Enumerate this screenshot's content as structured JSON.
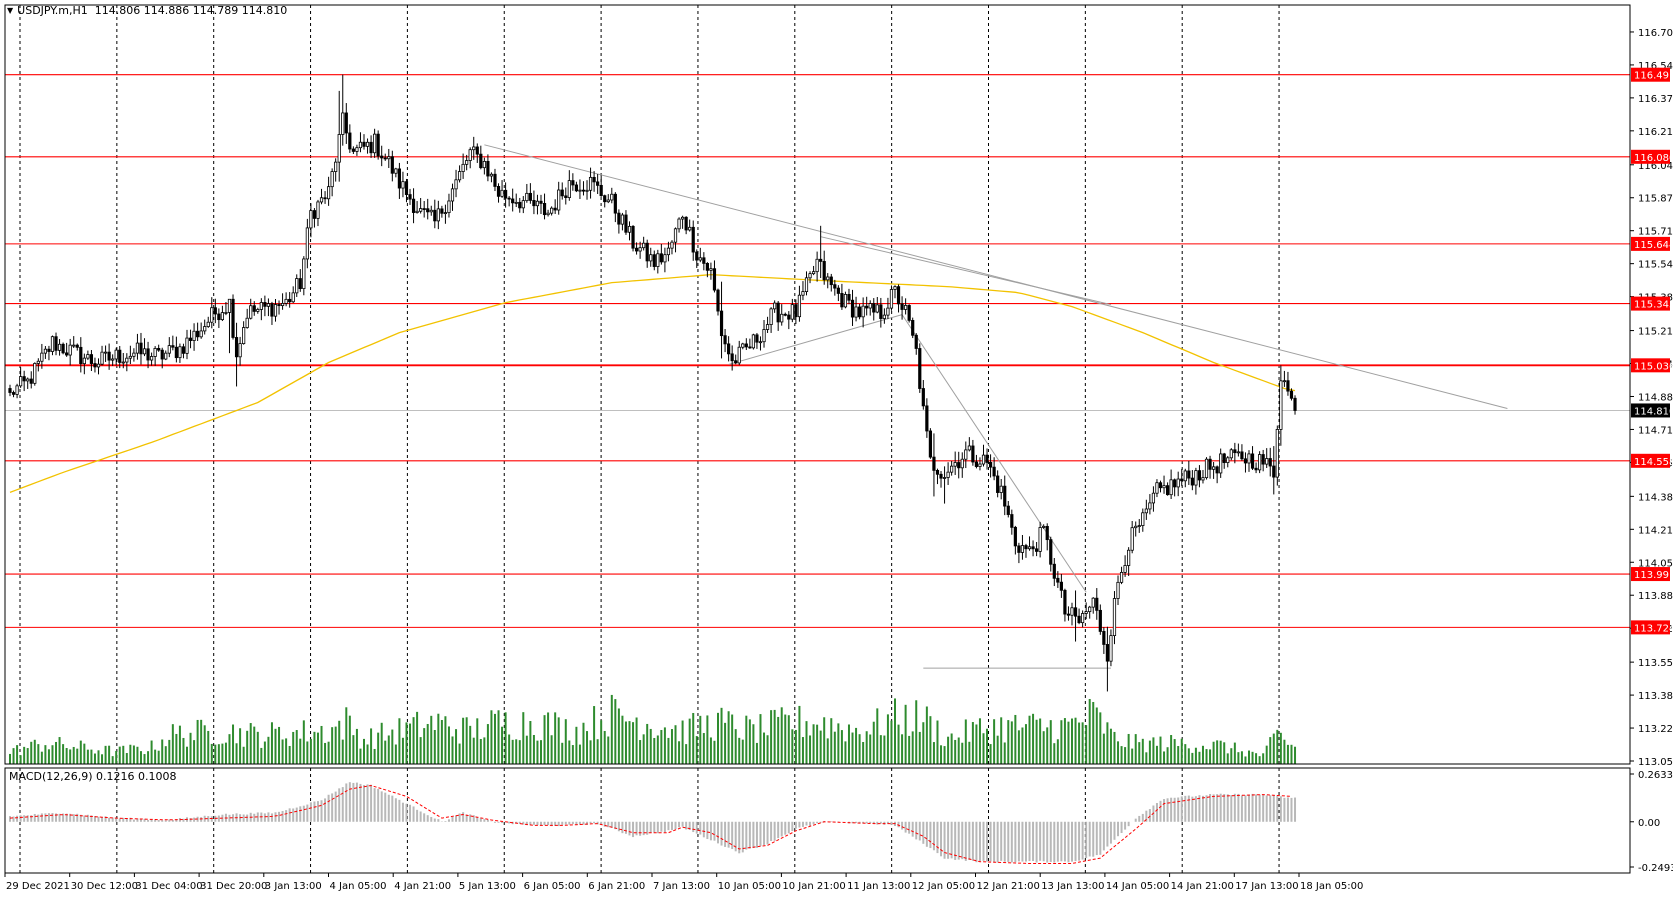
{
  "header": {
    "symbol": "USDJPY.m,H1",
    "ohlc": "114.806 114.886 114.789 114.810"
  },
  "macd_header": {
    "label": "MACD(12,26,9)",
    "values": "0.1216 0.1008"
  },
  "colors": {
    "background": "#ffffff",
    "axis": "#000000",
    "grid": "#000000",
    "bull_candle_fill": "#ffffff",
    "bear_candle_fill": "#000000",
    "candle_outline": "#000000",
    "volume": "#2e8b2e",
    "ma": "#f2c200",
    "level_line": "#ff0000",
    "trendline": "#a0a0a0",
    "current_price": "#bfbfbf",
    "macd_hist": "#b8b8b8",
    "macd_signal": "#ff0000",
    "tag_text": "#ffffff",
    "current_tag_bg": "#000000"
  },
  "chart_data": [
    {
      "type": "candlestick",
      "symbol": "USDJPY.m",
      "timeframe": "H1",
      "x_tick_labels": [
        "29 Dec 2021",
        "30 Dec 12:00",
        "31 Dec 04:00",
        "31 Dec 20:00",
        "3 Jan 13:00",
        "4 Jan 05:00",
        "4 Jan 21:00",
        "5 Jan 13:00",
        "6 Jan 05:00",
        "6 Jan 21:00",
        "7 Jan 13:00",
        "10 Jan 05:00",
        "10 Jan 21:00",
        "11 Jan 13:00",
        "12 Jan 05:00",
        "12 Jan 21:00",
        "13 Jan 13:00",
        "14 Jan 05:00",
        "14 Jan 21:00",
        "17 Jan 13:00",
        "18 Jan 05:00"
      ],
      "y_tick_labels": [
        "116.705",
        "116.540",
        "116.375",
        "116.210",
        "116.040",
        "115.875",
        "115.710",
        "115.545",
        "115.380",
        "115.210",
        "115.045",
        "114.880",
        "114.715",
        "114.550",
        "114.380",
        "114.215",
        "114.050",
        "113.885",
        "113.720",
        "113.550",
        "113.385",
        "113.220",
        "113.055"
      ],
      "ylim": [
        113.04,
        116.84
      ],
      "grid": "vertical dashed",
      "current_price": 114.81,
      "horizontal_levels": [
        116.491,
        116.08,
        115.644,
        115.345,
        115.036,
        114.558,
        113.991,
        113.724
      ],
      "moving_average": {
        "anchors": [
          [
            0,
            114.4
          ],
          [
            15,
            114.5
          ],
          [
            40,
            114.65
          ],
          [
            70,
            114.85
          ],
          [
            90,
            115.05
          ],
          [
            110,
            115.2
          ],
          [
            140,
            115.35
          ],
          [
            170,
            115.45
          ],
          [
            198,
            115.49
          ],
          [
            230,
            115.46
          ],
          [
            265,
            115.43
          ],
          [
            285,
            115.4
          ],
          [
            300,
            115.33
          ],
          [
            320,
            115.2
          ],
          [
            340,
            115.05
          ],
          [
            360,
            114.92
          ],
          [
            380,
            114.85
          ],
          [
            402,
            114.81
          ]
        ]
      },
      "trendlines": [
        {
          "from": [
            134,
            116.14
          ],
          "to": [
            423,
            114.82
          ]
        },
        {
          "from": [
            229,
            115.68
          ],
          "to": [
            311,
            115.34
          ]
        },
        {
          "from": [
            203,
            115.04
          ],
          "to": [
            252,
            115.29
          ]
        },
        {
          "from": [
            252,
            115.29
          ],
          "to": [
            304,
            113.9
          ]
        },
        {
          "from": [
            258,
            113.52
          ],
          "to": [
            311,
            113.52
          ]
        }
      ],
      "close_anchors": [
        [
          0,
          114.9
        ],
        [
          5,
          114.95
        ],
        [
          12,
          115.15
        ],
        [
          18,
          115.1
        ],
        [
          24,
          115.05
        ],
        [
          30,
          115.08
        ],
        [
          36,
          115.1
        ],
        [
          42,
          115.08
        ],
        [
          48,
          115.12
        ],
        [
          54,
          115.22
        ],
        [
          58,
          115.3
        ],
        [
          62,
          115.35
        ],
        [
          64,
          115.1
        ],
        [
          67,
          115.3
        ],
        [
          72,
          115.32
        ],
        [
          78,
          115.35
        ],
        [
          82,
          115.45
        ],
        [
          85,
          115.8
        ],
        [
          90,
          115.9
        ],
        [
          94,
          116.25
        ],
        [
          97,
          116.1
        ],
        [
          103,
          116.15
        ],
        [
          107,
          116.05
        ],
        [
          110,
          115.95
        ],
        [
          116,
          115.8
        ],
        [
          120,
          115.75
        ],
        [
          126,
          115.95
        ],
        [
          130,
          116.1
        ],
        [
          134,
          116.05
        ],
        [
          138,
          115.9
        ],
        [
          146,
          115.85
        ],
        [
          152,
          115.8
        ],
        [
          158,
          115.95
        ],
        [
          164,
          115.95
        ],
        [
          170,
          115.85
        ],
        [
          176,
          115.65
        ],
        [
          182,
          115.55
        ],
        [
          186,
          115.6
        ],
        [
          190,
          115.8
        ],
        [
          194,
          115.6
        ],
        [
          198,
          115.5
        ],
        [
          201,
          115.2
        ],
        [
          204,
          115.05
        ],
        [
          210,
          115.15
        ],
        [
          216,
          115.3
        ],
        [
          222,
          115.3
        ],
        [
          228,
          115.55
        ],
        [
          231,
          115.45
        ],
        [
          236,
          115.35
        ],
        [
          240,
          115.3
        ],
        [
          246,
          115.3
        ],
        [
          250,
          115.4
        ],
        [
          253,
          115.3
        ],
        [
          256,
          115.1
        ],
        [
          258,
          114.8
        ],
        [
          260,
          114.55
        ],
        [
          264,
          114.5
        ],
        [
          270,
          114.6
        ],
        [
          276,
          114.55
        ],
        [
          280,
          114.4
        ],
        [
          284,
          114.15
        ],
        [
          288,
          114.1
        ],
        [
          292,
          114.2
        ],
        [
          295,
          114.0
        ],
        [
          298,
          113.8
        ],
        [
          302,
          113.75
        ],
        [
          306,
          113.85
        ],
        [
          310,
          113.6
        ],
        [
          313,
          113.95
        ],
        [
          316,
          114.15
        ],
        [
          320,
          114.25
        ],
        [
          324,
          114.4
        ],
        [
          330,
          114.45
        ],
        [
          336,
          114.5
        ],
        [
          342,
          114.55
        ],
        [
          348,
          114.58
        ],
        [
          354,
          114.55
        ],
        [
          357,
          114.5
        ],
        [
          359,
          115.0
        ],
        [
          361,
          114.9
        ],
        [
          363,
          114.81
        ]
      ],
      "events": [
        [
          62,
          -0.05,
          0.18
        ],
        [
          64,
          0.05,
          0.12
        ],
        [
          93,
          0.18,
          0.05
        ],
        [
          94,
          0.15,
          0.05
        ],
        [
          201,
          0.1,
          0.1
        ],
        [
          229,
          0.15,
          0.05
        ],
        [
          261,
          0.1,
          0.1
        ],
        [
          264,
          0.05,
          0.12
        ],
        [
          301,
          0.05,
          0.1
        ],
        [
          310,
          0.05,
          0.12
        ],
        [
          359,
          0.05,
          0.05
        ],
        [
          357,
          0.05,
          0.06
        ]
      ],
      "volume": {
        "peaks": [
          [
            0,
            15
          ],
          [
            10,
            25
          ],
          [
            30,
            15
          ],
          [
            40,
            20
          ],
          [
            45,
            35
          ],
          [
            60,
            40
          ],
          [
            70,
            35
          ],
          [
            90,
            40
          ],
          [
            95,
            50
          ],
          [
            100,
            30
          ],
          [
            120,
            50
          ],
          [
            130,
            40
          ],
          [
            138,
            50
          ],
          [
            150,
            50
          ],
          [
            160,
            40
          ],
          [
            170,
            60
          ],
          [
            180,
            50
          ],
          [
            190,
            40
          ],
          [
            200,
            50
          ],
          [
            210,
            40
          ],
          [
            220,
            50
          ],
          [
            229,
            50
          ],
          [
            240,
            40
          ],
          [
            250,
            55
          ],
          [
            258,
            55
          ],
          [
            265,
            30
          ],
          [
            272,
            40
          ],
          [
            278,
            45
          ],
          [
            288,
            45
          ],
          [
            298,
            45
          ],
          [
            302,
            50
          ],
          [
            306,
            60
          ],
          [
            312,
            30
          ],
          [
            318,
            25
          ],
          [
            330,
            25
          ],
          [
            342,
            22
          ],
          [
            354,
            10
          ],
          [
            358,
            35
          ],
          [
            362,
            22
          ]
        ],
        "scale_max": 85
      },
      "macd": {
        "ylim": [
          -0.2493,
          0.2633
        ],
        "y_tick_labels": [
          "0.2633",
          "0.00",
          "-0.2493"
        ],
        "histogram_anchors": [
          [
            0,
            0.03
          ],
          [
            15,
            0.05
          ],
          [
            30,
            0.02
          ],
          [
            45,
            0.01
          ],
          [
            60,
            0.04
          ],
          [
            75,
            0.05
          ],
          [
            88,
            0.12
          ],
          [
            96,
            0.22
          ],
          [
            102,
            0.2
          ],
          [
            112,
            0.1
          ],
          [
            122,
            0.0
          ],
          [
            128,
            0.05
          ],
          [
            136,
            0.0
          ],
          [
            148,
            -0.02
          ],
          [
            156,
            -0.02
          ],
          [
            166,
            -0.01
          ],
          [
            176,
            -0.08
          ],
          [
            186,
            -0.05
          ],
          [
            190,
            -0.03
          ],
          [
            198,
            -0.1
          ],
          [
            206,
            -0.17
          ],
          [
            214,
            -0.12
          ],
          [
            222,
            -0.04
          ],
          [
            230,
            0.0
          ],
          [
            244,
            -0.01
          ],
          [
            250,
            -0.02
          ],
          [
            258,
            -0.12
          ],
          [
            264,
            -0.2
          ],
          [
            274,
            -0.22
          ],
          [
            288,
            -0.22
          ],
          [
            300,
            -0.22
          ],
          [
            308,
            -0.18
          ],
          [
            318,
            0.02
          ],
          [
            326,
            0.13
          ],
          [
            340,
            0.15
          ],
          [
            354,
            0.15
          ],
          [
            362,
            0.13
          ]
        ],
        "signal_anchors": [
          [
            0,
            0.02
          ],
          [
            15,
            0.04
          ],
          [
            30,
            0.02
          ],
          [
            45,
            0.01
          ],
          [
            60,
            0.02
          ],
          [
            75,
            0.03
          ],
          [
            88,
            0.09
          ],
          [
            96,
            0.18
          ],
          [
            102,
            0.2
          ],
          [
            112,
            0.14
          ],
          [
            122,
            0.02
          ],
          [
            128,
            0.04
          ],
          [
            136,
            0.01
          ],
          [
            148,
            -0.02
          ],
          [
            156,
            -0.02
          ],
          [
            166,
            -0.01
          ],
          [
            176,
            -0.06
          ],
          [
            186,
            -0.06
          ],
          [
            190,
            -0.03
          ],
          [
            198,
            -0.06
          ],
          [
            206,
            -0.15
          ],
          [
            214,
            -0.13
          ],
          [
            222,
            -0.05
          ],
          [
            230,
            0.0
          ],
          [
            244,
            -0.01
          ],
          [
            250,
            -0.01
          ],
          [
            258,
            -0.08
          ],
          [
            264,
            -0.17
          ],
          [
            274,
            -0.22
          ],
          [
            288,
            -0.23
          ],
          [
            300,
            -0.23
          ],
          [
            308,
            -0.2
          ],
          [
            318,
            -0.04
          ],
          [
            326,
            0.1
          ],
          [
            340,
            0.14
          ],
          [
            354,
            0.15
          ],
          [
            362,
            0.14
          ]
        ]
      }
    }
  ]
}
